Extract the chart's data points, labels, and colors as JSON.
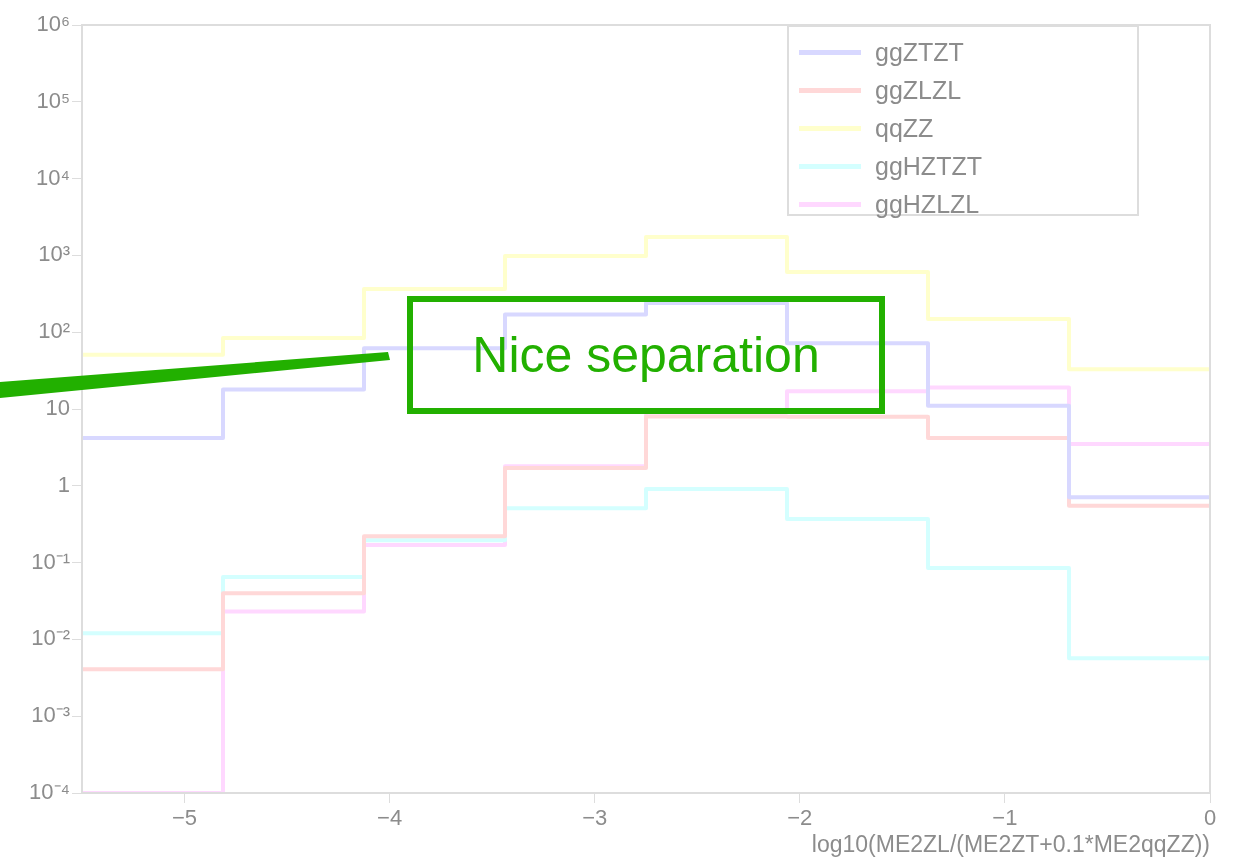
{
  "chart_data": {
    "type": "histogram",
    "xlabel": "log10(ME2ZL/(ME2ZT+0.1*ME2qqZZ))",
    "bins": [
      -5.5,
      -4.8125,
      -4.125,
      -3.4375,
      -2.75,
      -2.0625,
      -1.375,
      -0.6875,
      0
    ],
    "series": [
      {
        "name": "ggZTZT",
        "color": "#d8d8ff",
        "values": [
          4.2,
          18,
          62,
          170,
          240,
          72,
          11,
          0.71
        ]
      },
      {
        "name": "ggZLZL",
        "color": "#ffd8d8",
        "values": [
          0.0041,
          0.04,
          0.22,
          1.7,
          8,
          7.9,
          4.2,
          0.55
        ]
      },
      {
        "name": "qqZZ",
        "color": "#ffffcc",
        "values": [
          51,
          84,
          365,
          980,
          1740,
          610,
          149,
          33
        ]
      },
      {
        "name": "ggHZTZT",
        "color": "#d4ffff",
        "values": [
          0.012,
          0.065,
          0.195,
          0.51,
          0.91,
          0.37,
          0.085,
          0.0057
        ]
      },
      {
        "name": "ggHZLZL",
        "color": "#ffd8ff",
        "values": [
          0.0001,
          0.023,
          0.17,
          1.8,
          9,
          17,
          19,
          3.5
        ]
      }
    ],
    "xlim": [
      -5.5,
      0
    ],
    "xticks": [
      {
        "value": -5,
        "label": "−5"
      },
      {
        "value": -4,
        "label": "−4"
      },
      {
        "value": -3,
        "label": "−3"
      },
      {
        "value": -2,
        "label": "−2"
      },
      {
        "value": -1,
        "label": "−1"
      },
      0
    ],
    "log": true,
    "ylim": [
      0.0001,
      1000000
    ],
    "yticks": [
      {
        "value": 0.0001,
        "label": "10⁻⁴"
      },
      {
        "value": 0.001,
        "label": "10⁻³"
      },
      {
        "value": 0.01,
        "label": "10⁻²"
      },
      {
        "value": 0.1,
        "label": "10⁻¹"
      },
      1,
      10,
      {
        "value": 100,
        "label": "10²"
      },
      {
        "value": 1000,
        "label": "10³"
      },
      {
        "value": 10000,
        "label": "10⁴"
      },
      {
        "value": 100000,
        "label": "10⁵"
      },
      {
        "value": 1000000,
        "label": "10⁶"
      }
    ],
    "grid": false,
    "legend": "top right",
    "annotations": [
      "Nice separation"
    ]
  }
}
